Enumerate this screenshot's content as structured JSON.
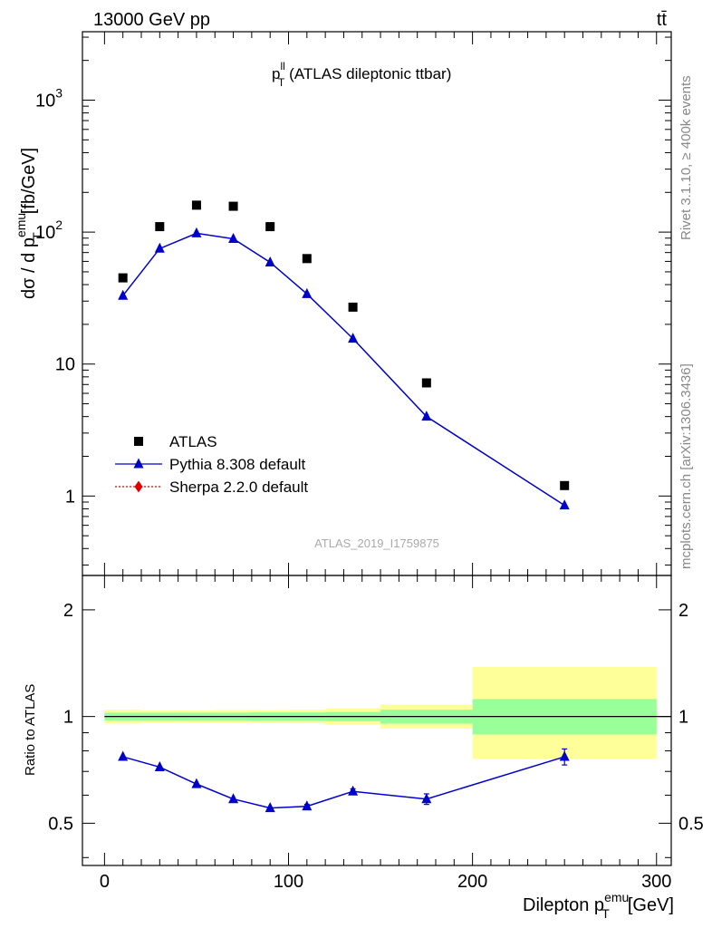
{
  "header": {
    "left": "13000 GeV pp",
    "right": "tt̄"
  },
  "side_labels": {
    "rivet": "Rivet 3.1.10, ≥ 400k events",
    "mcplots": "mcplots.cern.ch [arXiv:1306.3436]"
  },
  "plot_title": {
    "main": "p",
    "sup": "ll",
    "sub": "T",
    "rest": "(ATLAS dileptonic ttbar)"
  },
  "watermark": "ATLAS_2019_I1759875",
  "ylabel": {
    "prefix": "dσ / d p",
    "sup": "emu",
    "sub": "T",
    "suffix": "[fb/GeV]"
  },
  "ratio_ylabel": "Ratio to ATLAS",
  "xlabel": {
    "prefix": "Dilepton p",
    "sup": "emu",
    "sub": "T",
    "suffix": "[GeV]"
  },
  "legend": [
    {
      "label": "ATLAS",
      "marker": "square",
      "color": "#000000"
    },
    {
      "label": "Pythia 8.308 default",
      "marker": "triangle",
      "color": "#0000cc"
    },
    {
      "label": "Sherpa 2.2.0 default",
      "marker": "diamond",
      "color": "#e00000"
    }
  ],
  "main_ticks": [
    {
      "label": "1",
      "value": 1
    },
    {
      "label": "10",
      "value": 10
    },
    {
      "label": "10",
      "sup": "2",
      "value": 100
    },
    {
      "label": "10",
      "sup": "3",
      "value": 1000
    }
  ],
  "ratio_ticks": [
    "0.5",
    "1",
    "2"
  ],
  "x_ticks": [
    "0",
    "100",
    "200",
    "300"
  ],
  "chart_data": {
    "type": "scatter",
    "main": {
      "yscale": "log",
      "xlim": [
        -12,
        308
      ],
      "ylim": [
        0.25,
        3300
      ],
      "series": [
        {
          "name": "ATLAS",
          "marker": "square",
          "color": "#000000",
          "x": [
            10,
            30,
            50,
            70,
            90,
            110,
            135,
            175,
            250
          ],
          "y": [
            45,
            110,
            160,
            157,
            110,
            63,
            27,
            7.2,
            1.2
          ]
        },
        {
          "name": "Pythia 8.308 default",
          "marker": "triangle",
          "color": "#0000cc",
          "x": [
            10,
            30,
            50,
            70,
            90,
            110,
            135,
            175,
            250
          ],
          "y": [
            33,
            75,
            98,
            89,
            59,
            34,
            15.6,
            4.0,
            0.85
          ]
        }
      ]
    },
    "ratio": {
      "yscale": "log",
      "ylim": [
        0.38,
        2.5
      ],
      "reference": 1,
      "bands": [
        {
          "x": [
            0,
            20
          ],
          "green": [
            0.975,
            1.025
          ],
          "yellow": [
            0.955,
            1.045
          ]
        },
        {
          "x": [
            20,
            40
          ],
          "green": [
            0.975,
            1.025
          ],
          "yellow": [
            0.96,
            1.04
          ]
        },
        {
          "x": [
            40,
            60
          ],
          "green": [
            0.975,
            1.025
          ],
          "yellow": [
            0.96,
            1.04
          ]
        },
        {
          "x": [
            60,
            80
          ],
          "green": [
            0.975,
            1.025
          ],
          "yellow": [
            0.96,
            1.042
          ]
        },
        {
          "x": [
            80,
            100
          ],
          "green": [
            0.973,
            1.027
          ],
          "yellow": [
            0.958,
            1.042
          ]
        },
        {
          "x": [
            100,
            120
          ],
          "green": [
            0.973,
            1.027
          ],
          "yellow": [
            0.957,
            1.045
          ]
        },
        {
          "x": [
            120,
            150
          ],
          "green": [
            0.97,
            1.03
          ],
          "yellow": [
            0.948,
            1.055
          ]
        },
        {
          "x": [
            150,
            200
          ],
          "green": [
            0.955,
            1.045
          ],
          "yellow": [
            0.925,
            1.08
          ]
        },
        {
          "x": [
            200,
            300
          ],
          "green": [
            0.89,
            1.12
          ],
          "yellow": [
            0.76,
            1.38
          ]
        }
      ],
      "series": [
        {
          "name": "Pythia 8.308 default",
          "color": "#0000cc",
          "x": [
            10,
            30,
            50,
            70,
            90,
            110,
            135,
            175,
            250
          ],
          "y": [
            0.77,
            0.72,
            0.645,
            0.585,
            0.552,
            0.558,
            0.615,
            0.585,
            0.77
          ],
          "err": [
            0.005,
            0.005,
            0.005,
            0.005,
            0.006,
            0.007,
            0.01,
            0.02,
            0.04
          ]
        }
      ]
    }
  }
}
